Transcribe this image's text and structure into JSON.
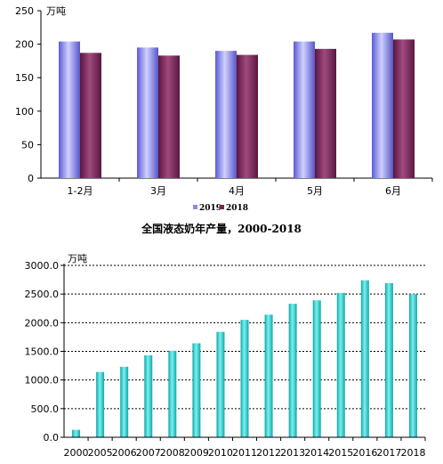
{
  "chart_data": [
    {
      "type": "bar",
      "unit": "万吨",
      "categories": [
        "1-2月",
        "3月",
        "4月",
        "5月",
        "6月"
      ],
      "series": [
        {
          "name": "2019",
          "values": [
            204,
            195,
            190,
            204,
            217
          ],
          "color": "#8a8ae6"
        },
        {
          "name": "2018",
          "values": [
            187,
            183,
            184,
            193,
            207
          ],
          "color": "#7a2456"
        }
      ],
      "ylim": [
        0,
        250
      ],
      "yticks": [
        0,
        50,
        100,
        150,
        200,
        250
      ],
      "grid": false,
      "legend": "bottom-center"
    },
    {
      "type": "bar",
      "title": "全国液态奶年产量，2000-2018",
      "unit": "万吨",
      "categories": [
        "2000",
        "2005",
        "2006",
        "2007",
        "2008",
        "2009",
        "2010",
        "2011",
        "2012",
        "2013",
        "2014",
        "2015",
        "2016",
        "2017",
        "2018"
      ],
      "values": [
        130,
        1140,
        1230,
        1430,
        1510,
        1640,
        1840,
        2050,
        2140,
        2330,
        2390,
        2520,
        2740,
        2690,
        2500
      ],
      "color": "#1fc4c4",
      "ylim": [
        0,
        3000
      ],
      "yticks": [
        "0.0",
        "500.0",
        "1000.0",
        "1500.0",
        "2000.0",
        "2500.0",
        "3000.0"
      ],
      "grid": true
    }
  ]
}
